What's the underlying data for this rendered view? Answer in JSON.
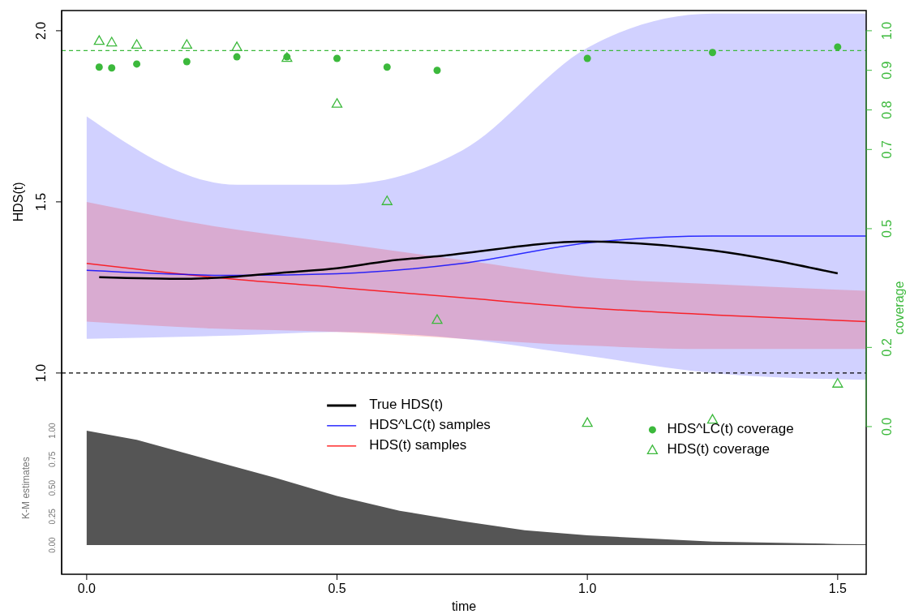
{
  "chart_data": {
    "type": "line",
    "xlabel": "time",
    "ylabel": "HDS(t)",
    "y2label": "coverage",
    "y3label": "K-M estimates",
    "xlim": [
      -0.05,
      1.557
    ],
    "xticks": [
      {
        "value": 0,
        "label": "0.0"
      },
      {
        "value": 0.5,
        "label": "0.5"
      },
      {
        "value": 1,
        "label": "1.0"
      },
      {
        "value": 1.5,
        "label": "1.5"
      }
    ],
    "ylim": [
      0.412,
      2.059
    ],
    "yticks": [
      {
        "value": 1,
        "label": "1.0"
      },
      {
        "value": 1.5,
        "label": "1.5"
      },
      {
        "value": 2,
        "label": "2.0"
      }
    ],
    "y2lim": [
      -0.373,
      1.051
    ],
    "y2ticks": [
      {
        "value": 0,
        "label": "0.0"
      },
      {
        "value": 0.2,
        "label": "0.2"
      },
      {
        "value": 0.5,
        "label": "0.5"
      },
      {
        "value": 0.7,
        "label": "0.7"
      },
      {
        "value": 0.8,
        "label": "0.8"
      },
      {
        "value": 0.9,
        "label": "0.9"
      },
      {
        "value": 1,
        "label": "1.0"
      }
    ],
    "y3lim": [
      -0.255,
      4.674
    ],
    "y3ticks": [
      {
        "value": 0,
        "label": "0.00"
      },
      {
        "value": 0.25,
        "label": "0.25"
      },
      {
        "value": 0.5,
        "label": "0.50"
      },
      {
        "value": 0.75,
        "label": "0.75"
      },
      {
        "value": 1,
        "label": "1.00"
      }
    ],
    "ref_lines": [
      {
        "axis": "y",
        "value": 1,
        "color": "#000000",
        "line_style": "dashed"
      },
      {
        "axis": "y2",
        "value": 0.95,
        "color": "#3cb93c",
        "line_style": "dashed"
      }
    ],
    "legend": "bottom",
    "series": [
      {
        "name": "HDS^LC(t) samples",
        "color": "#0000ff",
        "x": [
          0,
          0.3,
          0.5,
          0.75,
          1,
          1.25,
          1.557
        ],
        "values": [
          1.3,
          1.285,
          1.29,
          1.32,
          1.38,
          1.4,
          1.4
        ],
        "lower": [
          1.1,
          1.11,
          1.12,
          1.1,
          1.05,
          1.0,
          0.98
        ],
        "upper": [
          1.75,
          1.55,
          1.55,
          1.65,
          1.95,
          2.05,
          2.05
        ]
      },
      {
        "name": "HDS(t) samples",
        "color": "#ff0000",
        "x": [
          0,
          0.25,
          0.5,
          0.75,
          1,
          1.25,
          1.557
        ],
        "values": [
          1.32,
          1.28,
          1.25,
          1.22,
          1.19,
          1.17,
          1.15
        ],
        "lower": [
          1.15,
          1.13,
          1.12,
          1.1,
          1.08,
          1.07,
          1.07
        ],
        "upper": [
          1.5,
          1.43,
          1.38,
          1.33,
          1.28,
          1.26,
          1.24
        ]
      },
      {
        "name": "True HDS(t)",
        "color": "#000000",
        "x": [
          0.025,
          0.2,
          0.3,
          0.4,
          0.5,
          0.6,
          0.7,
          1,
          1.25,
          1.5
        ],
        "values": [
          1.28,
          1.275,
          1.282,
          1.294,
          1.306,
          1.327,
          1.341,
          1.384,
          1.358,
          1.291
        ]
      },
      {
        "name": "HDS^LC(t) coverage",
        "type": "scatter",
        "axis": "y2",
        "marker": "circle",
        "color": "#3cb93c",
        "x": [
          0.025,
          0.05,
          0.1,
          0.2,
          0.3,
          0.4,
          0.5,
          0.6,
          0.7,
          1,
          1.25,
          1.5
        ],
        "values": [
          0.908,
          0.906,
          0.916,
          0.922,
          0.934,
          0.934,
          0.93,
          0.908,
          0.9,
          0.93,
          0.945,
          0.959
        ]
      },
      {
        "name": "HDS(t) coverage",
        "type": "scatter",
        "axis": "y2",
        "marker": "triangle",
        "color": "#3cb93c",
        "x": [
          0.025,
          0.05,
          0.1,
          0.2,
          0.3,
          0.4,
          0.5,
          0.6,
          0.7,
          1,
          1.25,
          1.5
        ],
        "values": [
          0.975,
          0.971,
          0.965,
          0.965,
          0.959,
          0.932,
          0.816,
          0.57,
          0.27,
          0.01,
          0.018,
          0.109
        ]
      },
      {
        "type": "area",
        "axis": "y3",
        "color": "#555555",
        "x": [
          0,
          0.1,
          0.25,
          0.375,
          0.5,
          0.625,
          0.75,
          0.875,
          1,
          1.25,
          1.5,
          1.557
        ],
        "values": [
          1,
          0.92,
          0.74,
          0.59,
          0.43,
          0.3,
          0.21,
          0.13,
          0.085,
          0.03,
          0.01,
          0.008
        ]
      }
    ]
  }
}
